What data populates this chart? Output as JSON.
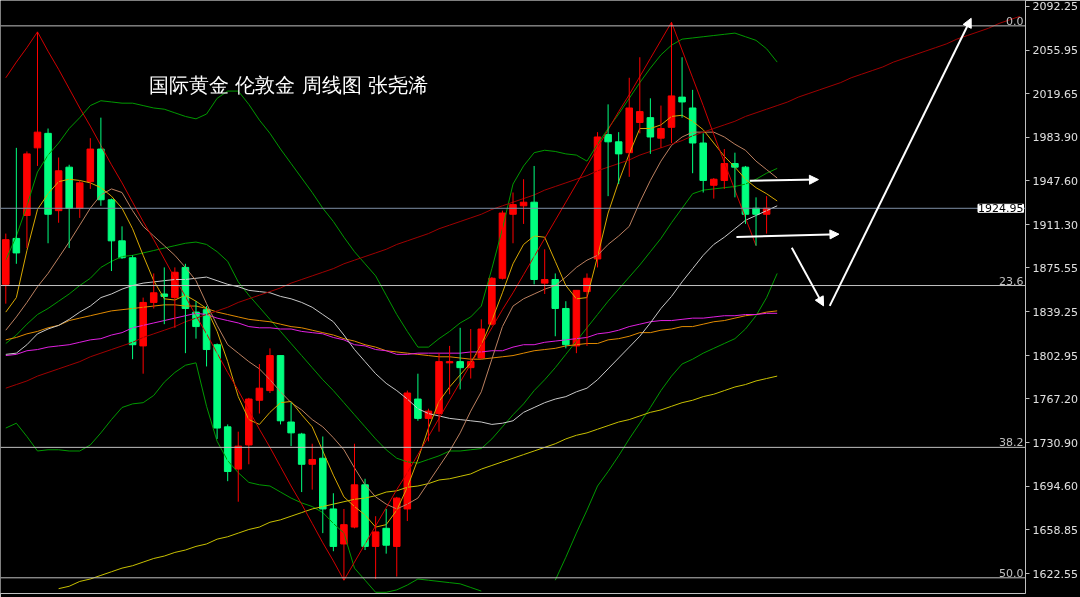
{
  "chart_data": {
    "type": "candlestick",
    "title": "国际黄金 伦敦金 周线图 张尧浠",
    "categories": [
      null,
      null,
      null,
      null,
      null,
      null,
      null,
      null,
      null,
      null,
      null,
      null,
      null,
      null,
      null,
      null,
      null,
      null,
      null,
      null,
      null,
      null,
      null,
      null,
      null,
      null,
      null,
      null,
      null,
      null,
      null,
      null,
      null,
      null,
      null,
      null,
      null,
      null,
      null,
      null,
      null,
      null,
      null,
      null,
      null,
      null,
      null,
      null,
      null,
      null,
      null,
      null,
      null,
      null,
      null,
      null,
      null,
      null,
      null,
      null,
      null,
      null,
      null,
      null,
      null,
      null,
      null,
      null,
      null,
      null,
      null,
      null,
      null,
      null,
      null,
      null,
      null,
      null,
      null,
      null,
      null,
      null,
      null,
      null,
      null,
      null,
      null,
      null,
      null,
      null,
      null,
      null,
      null,
      null,
      null,
      null,
      null
    ],
    "ohlc": [
      [
        1862,
        1904,
        1846,
        1899
      ],
      [
        1900,
        1975,
        1879,
        1888
      ],
      [
        1919,
        1972,
        1892,
        1970
      ],
      [
        1975,
        2071,
        1960,
        1988
      ],
      [
        1987,
        1991,
        1896,
        1920
      ],
      [
        1923,
        1967,
        1913,
        1956
      ],
      [
        1959,
        1961,
        1892,
        1925
      ],
      [
        1925,
        1948,
        1917,
        1946
      ],
      [
        1947,
        1983,
        1941,
        1974
      ],
      [
        1974,
        2000,
        1927,
        1932
      ],
      [
        1932,
        1933,
        1873,
        1898
      ],
      [
        1898,
        1910,
        1883,
        1884
      ],
      [
        1884,
        1886,
        1800,
        1812
      ],
      [
        1811,
        1851,
        1788,
        1847
      ],
      [
        1847,
        1871,
        1842,
        1855
      ],
      [
        1854,
        1876,
        1829,
        1852
      ],
      [
        1851,
        1876,
        1826,
        1872
      ],
      [
        1876,
        1879,
        1805,
        1842
      ],
      [
        1839,
        1848,
        1817,
        1827
      ],
      [
        1841,
        1844,
        1794,
        1808
      ],
      [
        1812,
        1813,
        1734,
        1743
      ],
      [
        1744,
        1746,
        1699,
        1707
      ],
      [
        1709,
        1740,
        1682,
        1728
      ],
      [
        1729,
        1768,
        1713,
        1767
      ],
      [
        1766,
        1796,
        1755,
        1776
      ],
      [
        1774,
        1809,
        1772,
        1803
      ],
      [
        1803,
        1803,
        1746,
        1749
      ],
      [
        1748,
        1764,
        1728,
        1739
      ],
      [
        1738,
        1739,
        1690,
        1713
      ],
      [
        1713,
        1730,
        1692,
        1717
      ],
      [
        1718,
        1736,
        1656,
        1676
      ],
      [
        1676,
        1689,
        1641,
        1645
      ],
      [
        1647,
        1676,
        1617,
        1663
      ],
      [
        1661,
        1730,
        1660,
        1696
      ],
      [
        1696,
        1701,
        1642,
        1645
      ],
      [
        1645,
        1670,
        1618,
        1657
      ],
      [
        1660,
        1676,
        1639,
        1646
      ],
      [
        1645,
        1686,
        1620,
        1685
      ],
      [
        1676,
        1774,
        1666,
        1772
      ],
      [
        1767,
        1788,
        1749,
        1751
      ],
      [
        1751,
        1759,
        1732,
        1757
      ],
      [
        1755,
        1805,
        1740,
        1798
      ],
      [
        1797,
        1811,
        1771,
        1798
      ],
      [
        1798,
        1826,
        1775,
        1793
      ],
      [
        1793,
        1825,
        1784,
        1798
      ],
      [
        1801,
        1833,
        1800,
        1825
      ],
      [
        1829,
        1868,
        1828,
        1867
      ],
      [
        1867,
        1923,
        1866,
        1921
      ],
      [
        1920,
        1938,
        1896,
        1928
      ],
      [
        1927,
        1949,
        1912,
        1930
      ],
      [
        1930,
        1960,
        1862,
        1866
      ],
      [
        1863,
        1891,
        1854,
        1866
      ],
      [
        1866,
        1871,
        1819,
        1842
      ],
      [
        1842,
        1848,
        1809,
        1812
      ],
      [
        1811,
        1857,
        1805,
        1857
      ],
      [
        1856,
        1871,
        1811,
        1867
      ],
      [
        1883,
        1988,
        1876,
        1984
      ],
      [
        1986,
        2011,
        1935,
        1980
      ],
      [
        1980,
        1988,
        1945,
        1970
      ],
      [
        1971,
        2033,
        1951,
        2008
      ],
      [
        1996,
        2050,
        1987,
        2005
      ],
      [
        2000,
        2016,
        1970,
        1984
      ],
      [
        1983,
        2010,
        1975,
        1991
      ],
      [
        1992,
        2079,
        1979,
        2018
      ],
      [
        2017,
        2050,
        2000,
        2013
      ],
      [
        2008,
        2023,
        1954,
        1979
      ],
      [
        1979,
        1987,
        1938,
        1948
      ],
      [
        1944,
        1950,
        1933,
        1949
      ],
      [
        1948,
        1974,
        1941,
        1962
      ],
      [
        1962,
        1971,
        1934,
        1959
      ],
      [
        1959,
        1960,
        1912,
        1920
      ],
      [
        1925,
        1934,
        1894,
        1920
      ],
      [
        1920,
        1935,
        1904,
        1925
      ],
      null,
      null,
      null,
      null,
      null,
      null,
      null,
      null,
      null,
      null,
      null,
      null,
      null,
      null,
      null,
      null,
      null,
      null,
      null,
      null,
      null,
      null,
      null,
      null
    ],
    "colors": [
      "#ff0000",
      "#00ff7f",
      "#ff0000",
      "#ff0000",
      "#00ff7f",
      "#ff0000",
      "#00ff7f",
      "#ff0000",
      "#ff0000",
      "#00ff7f",
      "#00ff7f",
      "#00ff7f",
      "#00ff7f",
      "#ff0000",
      "#ff0000",
      "#00ff7f",
      "#ff0000",
      "#00ff7f",
      "#00ff7f",
      "#00ff7f",
      "#00ff7f",
      "#00ff7f",
      "#ff0000",
      "#ff0000",
      "#ff0000",
      "#ff0000",
      "#00ff7f",
      "#00ff7f",
      "#00ff7f",
      "#ff0000",
      "#00ff7f",
      "#00ff7f",
      "#ff0000",
      "#ff0000",
      "#00ff7f",
      "#ff0000",
      "#00ff7f",
      "#ff0000",
      "#ff0000",
      "#00ff7f",
      "#ff0000",
      "#ff0000",
      "#ff0000",
      "#00ff7f",
      "#ff0000",
      "#ff0000",
      "#ff0000",
      "#ff0000",
      "#ff0000",
      "#ff0000",
      "#00ff7f",
      "#ff0000",
      "#00ff7f",
      "#00ff7f",
      "#ff0000",
      "#ff0000",
      "#ff0000",
      "#00ff7f",
      "#00ff7f",
      "#ff0000",
      "#ff0000",
      "#00ff7f",
      "#ff0000",
      "#ff0000",
      "#00ff7f",
      "#00ff7f",
      "#00ff7f",
      "#ff0000",
      "#ff0000",
      "#00ff7f",
      "#00ff7f",
      "#00ff7f",
      "#ff0000",
      null,
      null,
      null,
      null,
      null,
      null,
      null,
      null,
      null,
      null,
      null,
      null,
      null,
      null,
      null,
      null,
      null,
      null,
      null,
      null,
      null,
      null,
      null,
      null
    ],
    "ylim": [
      1606,
      2097
    ],
    "yticks": [
      2092.25,
      2055.95,
      2019.65,
      {
        "value": 1983.9,
        "label": "1983.90"
      },
      {
        "value": 1947.6,
        "label": "1947.60"
      },
      {
        "value": 1911.3,
        "label": "1911.30"
      },
      1875.55,
      1839.25,
      1802.95,
      {
        "value": 1767.2,
        "label": "1767.20"
      },
      {
        "value": 1730.9,
        "label": "1730.90"
      },
      {
        "value": 1694.6,
        "label": "1694.60"
      },
      1658.85,
      1622.55
    ],
    "tick_labels": "y",
    "series": [
      {
        "type": "line",
        "color": "#009900",
        "values": [
          1882,
          1902,
          1927,
          1955,
          1969,
          1979,
          1991,
          2000,
          2010,
          2014,
          2013,
          2012,
          2012,
          2010,
          2008,
          2007,
          2004,
          2001,
          1999,
          2003,
          2016,
          2022,
          2022,
          2011,
          1998,
          1987,
          1974,
          1962,
          1950,
          1938,
          1925,
          1914,
          1901,
          1889,
          1879,
          1869,
          1853,
          1837,
          1823,
          1810,
          1810,
          1817,
          1823,
          1830,
          1835,
          1844,
          1875,
          1908,
          1945,
          1960,
          1971,
          1973,
          1972,
          1970,
          1969,
          1964,
          1978,
          1991,
          2003,
          2016,
          2029,
          2041,
          2052,
          2060,
          2065,
          2066,
          2067,
          2068,
          2069,
          2070,
          2067,
          2064,
          2057,
          2046,
          null,
          null,
          null,
          null,
          null,
          null,
          null,
          null,
          null,
          null,
          null,
          null,
          null,
          null,
          null,
          null,
          null,
          null,
          null,
          null,
          null,
          null,
          null
        ]
      },
      {
        "type": "line",
        "color": "#009900",
        "values": [
          1743,
          1747,
          1736,
          1724,
          1725,
          1725,
          1724,
          1724,
          1729,
          1739,
          1750,
          1760,
          1763,
          1764,
          1770,
          1781,
          1789,
          1795,
          1797,
          1761,
          1732,
          1716,
          1706,
          1698,
          1696,
          1695,
          1690,
          1685,
          1681,
          1678,
          1673,
          1664,
          1656,
          1627,
          1617,
          1607,
          1607,
          1609,
          1613,
          1618,
          1617,
          1616,
          1615,
          1614,
          1611,
          1608,
          null,
          null,
          null,
          null,
          null,
          null,
          1617,
          1636,
          1656,
          1675,
          1695,
          1707,
          1720,
          1734,
          1747,
          1760,
          1774,
          1786,
          1796,
          1800,
          1805,
          1809,
          1813,
          1817,
          1825,
          1836,
          1851,
          1871,
          null,
          null,
          null,
          null,
          null,
          null,
          null,
          null,
          null,
          null,
          null,
          null,
          null,
          null,
          null,
          null,
          null,
          null,
          null,
          null,
          null,
          null,
          null
        ]
      },
      {
        "type": "line",
        "color": "#009900",
        "values": [
          1813,
          1820,
          1829,
          1837,
          1842,
          1848,
          1854,
          1861,
          1867,
          1876,
          1881,
          1885,
          1886,
          1888,
          1890,
          1892,
          1894,
          1896,
          1897,
          1895,
          1889,
          1881,
          1864,
          1853,
          1843,
          1833,
          1823,
          1813,
          1803,
          1793,
          1783,
          1774,
          1764,
          1754,
          1744,
          1734,
          1725,
          1718,
          1715,
          1714,
          1717,
          1720,
          1724,
          1724,
          1725,
          1726,
          1734,
          1744,
          1754,
          1763,
          1774,
          1783,
          1793,
          1804,
          1815,
          1826,
          1837,
          1848,
          1858,
          1868,
          1878,
          1889,
          1900,
          1913,
          1925,
          1937,
          1940,
          1941,
          1942,
          1943,
          1945,
          1949,
          1954,
          1958,
          null,
          null,
          null,
          null,
          null,
          null,
          null,
          null,
          null,
          null,
          null,
          null,
          null,
          null,
          null,
          null,
          null,
          null,
          null,
          null,
          null,
          null,
          null
        ]
      },
      {
        "type": "line",
        "color": "#c8c000",
        "values": [
          null,
          null,
          null,
          null,
          null,
          1610,
          1612,
          1616,
          1618,
          1621,
          1624,
          1627,
          1629,
          1632,
          1635,
          1637,
          1640,
          1642,
          1645,
          1647,
          1651,
          1653,
          1656,
          1659,
          1661,
          1665,
          1667,
          1670,
          1673,
          1676,
          1678,
          1680,
          1682,
          1684,
          1685,
          1687,
          1690,
          1691,
          1694,
          1695,
          1697,
          1700,
          1701,
          1703,
          1705,
          1709,
          1712,
          1715,
          1718,
          1721,
          1724,
          1727,
          1730,
          1734,
          1737,
          1739,
          1742,
          1745,
          1748,
          1750,
          1753,
          1756,
          1758,
          1761,
          1764,
          1766,
          1769,
          1771,
          1774,
          1777,
          1779,
          1782,
          1784,
          1786,
          null,
          null,
          null,
          null,
          null,
          null,
          null,
          null,
          null,
          null,
          null,
          null,
          null,
          null,
          null,
          null,
          null,
          null,
          null,
          null,
          null,
          null,
          null
        ]
      },
      {
        "type": "line",
        "color": "#e08a00",
        "values": [
          1816,
          1818,
          1821,
          1823,
          1826,
          1828,
          1832,
          1834,
          1836,
          1838,
          1840,
          1841,
          1842,
          1843,
          1844,
          1845,
          1845,
          1844,
          1844,
          1842,
          1839,
          1837,
          1835,
          1833,
          1832,
          1831,
          1829,
          1827,
          1826,
          1824,
          1822,
          1820,
          1817,
          1815,
          1812,
          1810,
          1807,
          1806,
          1805,
          1804,
          1803,
          1802,
          1802,
          1801,
          1800,
          1800,
          1801,
          1802,
          1803,
          1805,
          1807,
          1808,
          1809,
          1811,
          1812,
          1813,
          1813,
          1816,
          1817,
          1819,
          1822,
          1822,
          1824,
          1825,
          1827,
          1827,
          1829,
          1831,
          1832,
          1834,
          1836,
          1837,
          1839,
          1840,
          null,
          null,
          null,
          null,
          null,
          null,
          null,
          null,
          null,
          null,
          null,
          null,
          null,
          null,
          null,
          null,
          null,
          null,
          null,
          null,
          null,
          null,
          null
        ]
      },
      {
        "type": "line",
        "color": "#e020e0",
        "values": [
          1803,
          1804,
          1807,
          1808,
          1810,
          1811,
          1812,
          1814,
          1816,
          1817,
          1820,
          1822,
          1826,
          1828,
          1830,
          1832,
          1834,
          1836,
          1838,
          1837,
          1834,
          1832,
          1830,
          1827,
          1826,
          1826,
          1825,
          1825,
          1823,
          1822,
          1821,
          1818,
          1816,
          1812,
          1811,
          1808,
          1807,
          1804,
          1804,
          1805,
          1805,
          1805,
          1805,
          1805,
          1806,
          1806,
          1807,
          1807,
          1810,
          1812,
          1812,
          1814,
          1815,
          1816,
          1817,
          1818,
          1821,
          1822,
          1824,
          1827,
          1829,
          1831,
          1832,
          1832,
          1833,
          1834,
          1834,
          1835,
          1836,
          1836,
          1837,
          1837,
          1838,
          1838,
          null,
          null,
          null,
          null,
          null,
          null,
          null,
          null,
          null,
          null,
          null,
          null,
          null,
          null,
          null,
          null,
          null,
          null,
          null,
          null,
          null,
          null,
          null
        ]
      },
      {
        "type": "line",
        "color": "#c8c8c8",
        "values": [
          1804,
          1805,
          1812,
          1821,
          1825,
          1828,
          1833,
          1839,
          1844,
          1851,
          1854,
          1858,
          1861,
          1863,
          1864,
          1865,
          1866,
          1866,
          1867,
          1868,
          1865,
          1862,
          1860,
          1857,
          1856,
          1855,
          1852,
          1850,
          1847,
          1843,
          1837,
          1831,
          1820,
          1808,
          1798,
          1788,
          1780,
          1774,
          1767,
          1759,
          1755,
          1753,
          1751,
          1750,
          1749,
          1748,
          1746,
          1747,
          1749,
          1756,
          1760,
          1764,
          1767,
          1769,
          1773,
          1776,
          1783,
          1792,
          1801,
          1810,
          1819,
          1830,
          1842,
          1852,
          1864,
          1875,
          1886,
          1895,
          1901,
          1908,
          1915,
          1919,
          1923,
          1927,
          null,
          null,
          null,
          null,
          null,
          null,
          null,
          null,
          null,
          null,
          null,
          null,
          null,
          null,
          null,
          null,
          null,
          null,
          null,
          null,
          null,
          null,
          null
        ]
      },
      {
        "type": "line",
        "color": "#bc8060",
        "values": [
          1824,
          1835,
          1847,
          1860,
          1871,
          1884,
          1897,
          1911,
          1925,
          1936,
          1941,
          1938,
          1923,
          1910,
          1902,
          1894,
          1886,
          1876,
          1865,
          1846,
          1828,
          1812,
          1805,
          1798,
          1792,
          1783,
          1773,
          1764,
          1758,
          1750,
          1744,
          1735,
          1725,
          1710,
          1696,
          1686,
          1680,
          1676,
          1680,
          1685,
          1698,
          1711,
          1724,
          1739,
          1757,
          1773,
          1800,
          1827,
          1844,
          1850,
          1854,
          1858,
          1861,
          1868,
          1876,
          1882,
          1886,
          1895,
          1902,
          1910,
          1930,
          1948,
          1964,
          1977,
          1984,
          1988,
          1988,
          1988,
          1984,
          1978,
          1973,
          1964,
          1957,
          1950,
          null,
          null,
          null,
          null,
          null,
          null,
          null,
          null,
          null,
          null,
          null,
          null,
          null,
          null,
          null,
          null,
          null,
          null,
          null,
          null,
          null,
          null,
          null
        ]
      },
      {
        "type": "line",
        "color": "#d8a800",
        "values": [
          1839,
          1851,
          1890,
          1924,
          1937,
          1947,
          1949,
          1948,
          1946,
          1942,
          1935,
          1925,
          1908,
          1886,
          1865,
          1850,
          1849,
          1853,
          1848,
          1842,
          1823,
          1798,
          1769,
          1750,
          1746,
          1756,
          1764,
          1765,
          1754,
          1744,
          1724,
          1704,
          1686,
          1678,
          1671,
          1661,
          1663,
          1675,
          1694,
          1717,
          1743,
          1765,
          1777,
          1787,
          1797,
          1812,
          1832,
          1855,
          1879,
          1895,
          1902,
          1901,
          1881,
          1861,
          1850,
          1851,
          1885,
          1921,
          1947,
          1970,
          1991,
          1991,
          1994,
          2001,
          2002,
          1997,
          1990,
          1979,
          1968,
          1959,
          1949,
          1942,
          1937,
          1931,
          null,
          null,
          null,
          null,
          null,
          null,
          null,
          null,
          null,
          null,
          null,
          null,
          null,
          null,
          null,
          null,
          null,
          null,
          null,
          null,
          null,
          null,
          null
        ]
      },
      {
        "type": "line",
        "color": "#a00000",
        "values": [
          1776,
          1779,
          1782,
          1786,
          1789,
          1792,
          1795,
          1798,
          1802,
          1805,
          1808,
          1811,
          1814,
          1818,
          1821,
          1824,
          1827,
          1831,
          1834,
          1837,
          1840,
          1843,
          1847,
          1850,
          1853,
          1856,
          1859,
          1863,
          1866,
          1869,
          1872,
          1875,
          1879,
          1882,
          1885,
          1888,
          1891,
          1895,
          1898,
          1901,
          1904,
          1908,
          1911,
          1914,
          1917,
          1920,
          1924,
          1927,
          1930,
          1933,
          1936,
          1940,
          1943,
          1946,
          1949,
          1952,
          1956,
          1959,
          1962,
          1965,
          1969,
          1972,
          1975,
          1978,
          1981,
          1985,
          1988,
          1991,
          1994,
          1997,
          2001,
          2004,
          2007,
          2010,
          2013,
          2017,
          2020,
          2023,
          2026,
          2029,
          2033,
          2036,
          2039,
          2042,
          2046,
          2049,
          2052,
          2055,
          2058,
          2061,
          2065,
          2068,
          2071,
          2074,
          2078,
          2081,
          2084
        ]
      },
      {
        "type": "line",
        "color": "#d00000",
        "values": [
          2033,
          2046,
          2058,
          2071,
          2055,
          2040,
          2024,
          2008,
          1993,
          1977,
          1961,
          1946,
          1930,
          1914,
          1899,
          1883,
          1867,
          1852,
          1836,
          1821,
          1805,
          1789,
          1774,
          1758,
          1742,
          1727,
          1711,
          1695,
          1680,
          1664,
          1648,
          1633,
          1617,
          1632,
          1647,
          1662,
          1677,
          1692,
          1706,
          1721,
          1736,
          1751,
          1766,
          1781,
          1796,
          1811,
          1826,
          1841,
          1855,
          1870,
          1885,
          1900,
          1915,
          1930,
          1945,
          1960,
          1975,
          1990,
          2005,
          2019,
          2034,
          2049,
          2064,
          2079,
          2056,
          2033,
          2010,
          1986,
          1963,
          1940,
          1917,
          1894,
          null,
          null,
          null,
          null,
          null,
          null,
          null,
          null,
          null,
          null,
          null,
          null,
          null,
          null,
          null,
          null,
          null,
          null,
          null,
          null,
          null,
          null,
          null,
          null,
          null
        ]
      }
    ],
    "ref_lines": [
      {
        "axis": "y",
        "value": 2076,
        "color": "#c0c0c0"
      },
      {
        "axis": "y",
        "value": 1861,
        "color": "#c0c0c0"
      },
      {
        "axis": "y",
        "value": 1727,
        "color": "#c0c0c0"
      },
      {
        "axis": "y",
        "value": 1619,
        "color": "#c0c0c0"
      },
      {
        "axis": "y",
        "value": 1924.95,
        "label": "1924.95",
        "color": "#7f8fa6"
      }
    ],
    "annotations": [
      {
        "text": "0.0",
        "y": 2076
      },
      {
        "text": "23.6",
        "y": 1861
      },
      {
        "text": "38.2",
        "y": 1727
      },
      {
        "text": "50.0",
        "y": 1619
      }
    ]
  }
}
